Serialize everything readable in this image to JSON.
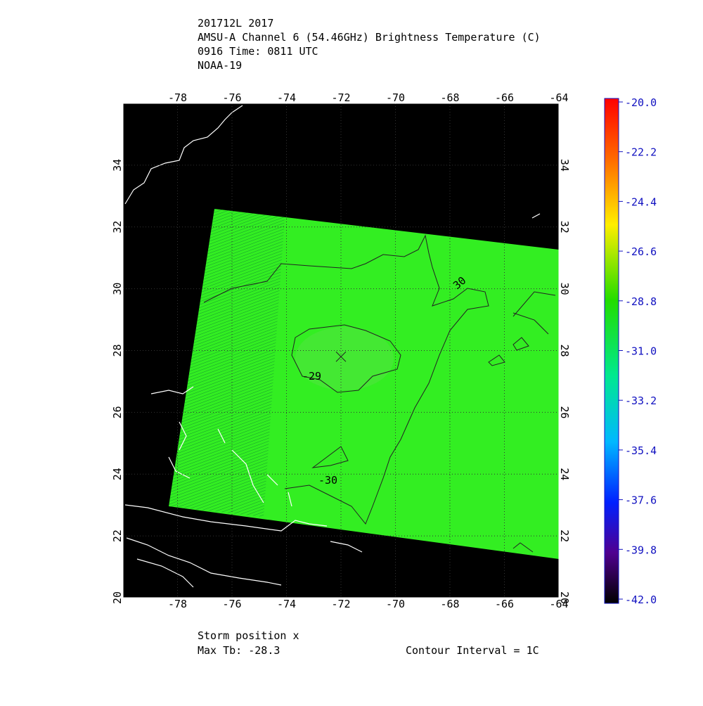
{
  "header": {
    "lines": [
      "201712L 2017",
      "AMSU-A Channel 6 (54.46GHz) Brightness Temperature (C)",
      "0916 Time: 0811 UTC",
      "NOAA-19"
    ]
  },
  "map": {
    "xlim": [
      -80,
      -64
    ],
    "ylim": [
      20,
      36
    ],
    "xticks": [
      -78,
      -76,
      -74,
      -72,
      -70,
      -68,
      -66,
      -64
    ],
    "yticks": [
      20,
      22,
      24,
      26,
      28,
      30,
      32,
      34
    ],
    "storm": {
      "lon": -72,
      "lat": 27.8
    },
    "contour_labels": [
      "30",
      "-29",
      "-30"
    ]
  },
  "colorbar": {
    "lim": [
      -42,
      -20
    ],
    "ticks": [
      {
        "value": -20,
        "label": "-20.0"
      },
      {
        "value": -22.2,
        "label": "-22.2"
      },
      {
        "value": -24.4,
        "label": "-24.4"
      },
      {
        "value": -26.6,
        "label": "-26.6"
      },
      {
        "value": -28.8,
        "label": "-28.8"
      },
      {
        "value": -31,
        "label": "-31.0"
      },
      {
        "value": -33.2,
        "label": "-33.2"
      },
      {
        "value": -35.4,
        "label": "-35.4"
      },
      {
        "value": -37.6,
        "label": "-37.6"
      },
      {
        "value": -39.8,
        "label": "-39.8"
      },
      {
        "value": -42,
        "label": "-42.0"
      }
    ]
  },
  "footer": {
    "storm_position": "Storm position x",
    "max_tb": "Max Tb: -28.3",
    "contour_interval": "Contour Interval = 1C"
  }
}
